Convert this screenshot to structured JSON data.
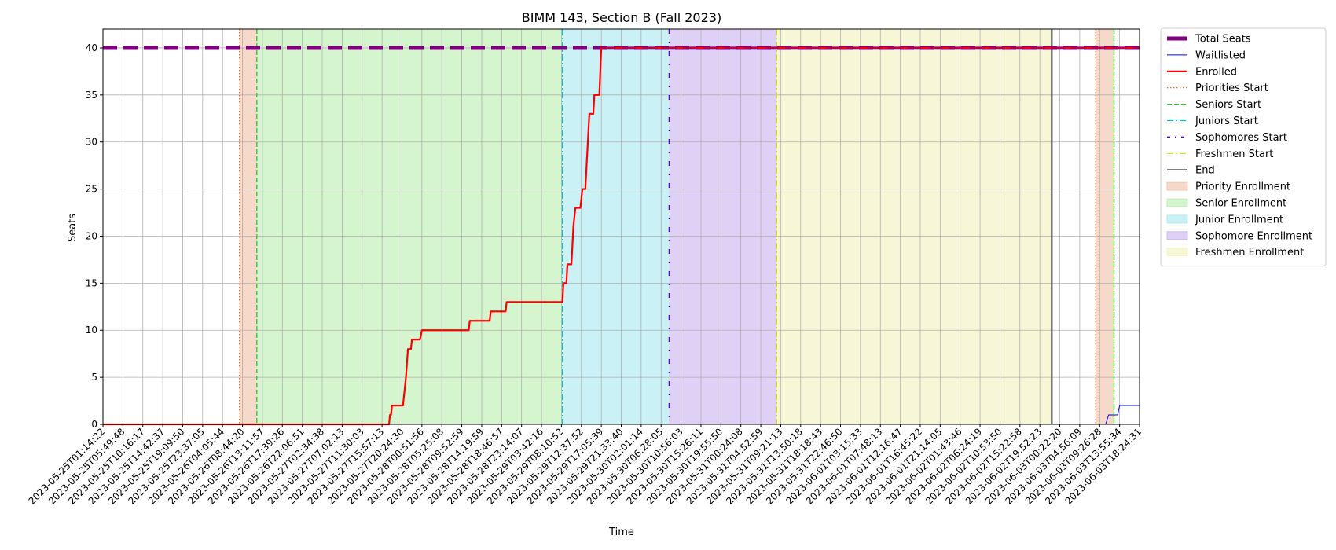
{
  "chart_data": {
    "type": "line",
    "title": "BIMM 143, Section B (Fall 2023)",
    "xlabel": "Time",
    "ylabel": "Seats",
    "ylim": [
      0,
      42
    ],
    "yticks": [
      0,
      5,
      10,
      15,
      20,
      25,
      30,
      35,
      40
    ],
    "grid": true,
    "legend_placement": "outside-right",
    "x_ticks": [
      "2023-05-25T01:14:22",
      "2023-05-25T05:49:48",
      "2023-05-25T10:16:17",
      "2023-05-25T14:42:37",
      "2023-05-25T19:09:50",
      "2023-05-25T23:37:05",
      "2023-05-26T04:05:44",
      "2023-05-26T08:44:20",
      "2023-05-26T13:11:57",
      "2023-05-26T17:39:26",
      "2023-05-26T22:06:51",
      "2023-05-27T02:34:38",
      "2023-05-27T07:02:13",
      "2023-05-27T11:30:03",
      "2023-05-27T15:57:13",
      "2023-05-27T20:24:30",
      "2023-05-28T00:51:56",
      "2023-05-28T05:25:08",
      "2023-05-28T09:52:59",
      "2023-05-28T14:19:59",
      "2023-05-28T18:46:57",
      "2023-05-28T23:14:07",
      "2023-05-29T03:42:16",
      "2023-05-29T08:10:52",
      "2023-05-29T12:37:52",
      "2023-05-29T17:05:39",
      "2023-05-29T21:33:40",
      "2023-05-30T02:01:14",
      "2023-05-30T06:28:05",
      "2023-05-30T10:56:03",
      "2023-05-30T15:26:11",
      "2023-05-30T19:55:50",
      "2023-05-31T00:24:08",
      "2023-05-31T04:52:59",
      "2023-05-31T09:21:13",
      "2023-05-31T13:50:18",
      "2023-05-31T18:18:43",
      "2023-05-31T22:46:50",
      "2023-06-01T03:15:33",
      "2023-06-01T07:48:13",
      "2023-06-01T12:16:47",
      "2023-06-01T16:45:22",
      "2023-06-01T21:14:05",
      "2023-06-02T01:43:46",
      "2023-06-02T06:24:19",
      "2023-06-02T10:53:50",
      "2023-06-02T15:22:58",
      "2023-06-02T19:52:23",
      "2023-06-03T00:22:20",
      "2023-06-03T04:56:09",
      "2023-06-03T09:26:28",
      "2023-06-03T13:55:34",
      "2023-06-03T18:24:31"
    ],
    "x_range_ticks": [
      0,
      52
    ],
    "series": [
      {
        "name": "Total Seats",
        "color": "#800080",
        "dash": "dashed",
        "width": 5,
        "points": [
          [
            0,
            40
          ],
          [
            52,
            40
          ]
        ]
      },
      {
        "name": "Waitlisted",
        "color": "#0000ff",
        "width": 1,
        "points": [
          [
            0,
            0
          ],
          [
            50.3,
            0
          ],
          [
            50.45,
            1
          ],
          [
            50.9,
            1
          ],
          [
            51,
            2
          ],
          [
            52,
            2
          ]
        ]
      },
      {
        "name": "Enrolled",
        "color": "#ff0000",
        "width": 2.2,
        "points": [
          [
            0,
            0
          ],
          [
            14.35,
            0
          ],
          [
            14.4,
            1
          ],
          [
            14.45,
            1
          ],
          [
            14.5,
            2
          ],
          [
            15.05,
            2
          ],
          [
            15.2,
            5
          ],
          [
            15.3,
            8
          ],
          [
            15.45,
            8
          ],
          [
            15.5,
            9
          ],
          [
            15.9,
            9
          ],
          [
            16,
            10
          ],
          [
            18.35,
            10
          ],
          [
            18.4,
            11
          ],
          [
            19.4,
            11
          ],
          [
            19.45,
            12
          ],
          [
            20.2,
            12
          ],
          [
            20.25,
            13
          ],
          [
            23.05,
            13
          ],
          [
            23.1,
            15
          ],
          [
            23.25,
            15
          ],
          [
            23.3,
            17
          ],
          [
            23.5,
            17
          ],
          [
            23.6,
            21
          ],
          [
            23.7,
            23
          ],
          [
            23.95,
            23
          ],
          [
            24.05,
            25
          ],
          [
            24.2,
            25
          ],
          [
            24.3,
            29
          ],
          [
            24.4,
            33
          ],
          [
            24.6,
            33
          ],
          [
            24.65,
            35
          ],
          [
            24.9,
            35
          ],
          [
            25,
            40
          ],
          [
            52,
            40
          ]
        ]
      }
    ],
    "vlines": [
      {
        "name": "Priorities Start",
        "x": 6.85,
        "color": "#ff5000",
        "dash": "dotted"
      },
      {
        "name": "Seniors Start",
        "x": 7.72,
        "color": "#22cc22",
        "dash": "dashed"
      },
      {
        "name": "Juniors Start",
        "x": 23.05,
        "color": "#00bfc8",
        "dash": "dashdot"
      },
      {
        "name": "Sophomores Start",
        "x": 28.4,
        "color": "#5500ff",
        "dash": "loose"
      },
      {
        "name": "Freshmen Start",
        "x": 33.8,
        "color": "#dddd00",
        "dash": "dashdot"
      },
      {
        "name": "End",
        "x": 47.6,
        "color": "#000000",
        "dash": "solid"
      },
      {
        "name": "",
        "x": 49.8,
        "color": "#ff5000",
        "dash": "dotted"
      },
      {
        "name": "",
        "x": 50.72,
        "color": "#22cc22",
        "dash": "dashed"
      }
    ],
    "spans": [
      {
        "name": "Priority Enrollment",
        "x0": 6.85,
        "x1": 7.72,
        "color": "#f2c0a6"
      },
      {
        "name": "Senior Enrollment",
        "x0": 7.72,
        "x1": 23.05,
        "color": "#b8eeab"
      },
      {
        "name": "Junior Enrollment",
        "x0": 23.05,
        "x1": 28.4,
        "color": "#a6e8ee"
      },
      {
        "name": "Sophomore Enrollment",
        "x0": 28.4,
        "x1": 33.8,
        "color": "#c9b0ee"
      },
      {
        "name": "Freshmen Enrollment",
        "x0": 33.8,
        "x1": 47.6,
        "color": "#f2f2bd"
      },
      {
        "name": "",
        "x0": 49.8,
        "x1": 50.72,
        "color": "#f2c0a6"
      }
    ],
    "legend": [
      {
        "label": "Total Seats",
        "kind": "line",
        "color": "#800080",
        "dash": "solid",
        "width": 5
      },
      {
        "label": "Waitlisted",
        "kind": "line",
        "color": "#0000ff",
        "dash": "solid",
        "width": 1
      },
      {
        "label": "Enrolled",
        "kind": "line",
        "color": "#ff0000",
        "dash": "solid",
        "width": 2.2
      },
      {
        "label": "Priorities Start",
        "kind": "line",
        "color": "#ff5000",
        "dash": "dotted",
        "width": 1.2
      },
      {
        "label": "Seniors Start",
        "kind": "line",
        "color": "#22cc22",
        "dash": "dashed",
        "width": 1.2
      },
      {
        "label": "Juniors Start",
        "kind": "line",
        "color": "#00bfc8",
        "dash": "dashdot",
        "width": 1.2
      },
      {
        "label": "Sophomores Start",
        "kind": "line",
        "color": "#5500ff",
        "dash": "loose",
        "width": 1.5
      },
      {
        "label": "Freshmen Start",
        "kind": "line",
        "color": "#dddd00",
        "dash": "dashdot",
        "width": 1.2
      },
      {
        "label": "End",
        "kind": "line",
        "color": "#000000",
        "dash": "solid",
        "width": 1.5
      },
      {
        "label": "Priority Enrollment",
        "kind": "patch",
        "color": "#f2c0a6"
      },
      {
        "label": "Senior Enrollment",
        "kind": "patch",
        "color": "#b8eeab"
      },
      {
        "label": "Junior Enrollment",
        "kind": "patch",
        "color": "#a6e8ee"
      },
      {
        "label": "Sophomore Enrollment",
        "kind": "patch",
        "color": "#c9b0ee"
      },
      {
        "label": "Freshmen Enrollment",
        "kind": "patch",
        "color": "#f2f2bd"
      }
    ]
  }
}
